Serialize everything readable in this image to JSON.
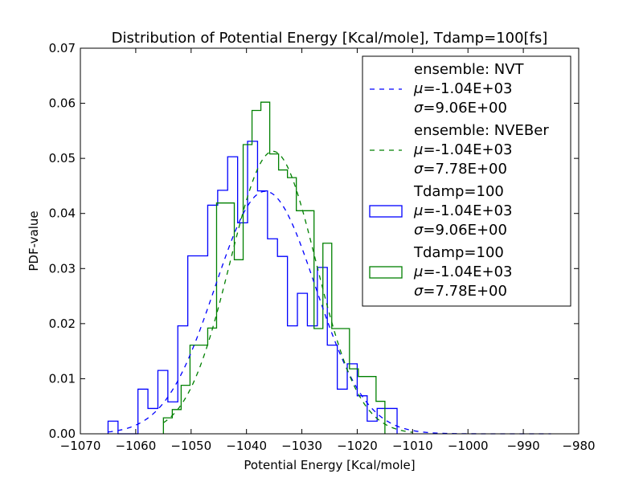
{
  "chart_data": {
    "type": "line",
    "title": "Distribution of Potential Energy [Kcal/mole], Tdamp=100[fs]",
    "xlabel": "Potential Energy [Kcal/mole]",
    "ylabel": "PDF-value",
    "xlim": [
      -1070,
      -980
    ],
    "ylim": [
      0.0,
      0.07
    ],
    "xticks": [
      -1070,
      -1060,
      -1050,
      -1040,
      -1030,
      -1020,
      -1010,
      -1000,
      -990,
      -980
    ],
    "xtick_labels": [
      "−1070",
      "−1060",
      "−1050",
      "−1040",
      "−1030",
      "−1020",
      "−1010",
      "−1000",
      "−990",
      "−980"
    ],
    "yticks": [
      0.0,
      0.01,
      0.02,
      0.03,
      0.04,
      0.05,
      0.06,
      0.07
    ],
    "ytick_labels": [
      "0.00",
      "0.01",
      "0.02",
      "0.03",
      "0.04",
      "0.05",
      "0.06",
      "0.07"
    ],
    "grid": false,
    "legend_position": "top-right",
    "series": [
      {
        "kind": "pdf-curve",
        "legend_lines": [
          "ensemble: NVT",
          "μ=-1.04E+03",
          "σ=9.06E+00"
        ],
        "color": "#0000ff",
        "style": "dashed",
        "mu": -1036.6,
        "sigma": 9.06,
        "x_range": [
          -1065,
          -985
        ]
      },
      {
        "kind": "pdf-curve",
        "legend_lines": [
          "ensemble: NVEBer",
          "μ=-1.04E+03",
          "σ=7.78E+00"
        ],
        "color": "#008000",
        "style": "dashed",
        "mu": -1035.2,
        "sigma": 7.78,
        "x_range": [
          -1055,
          -1010
        ]
      },
      {
        "kind": "histogram",
        "legend_lines": [
          "Tdamp=100",
          "μ=-1.04E+03",
          "σ=9.06E+00"
        ],
        "color": "#0000ff",
        "edges": [
          -1065.0,
          -1063.2,
          -1061.4,
          -1059.6,
          -1057.8,
          -1056.0,
          -1054.2,
          -1052.4,
          -1050.6,
          -1048.8,
          -1047.0,
          -1045.2,
          -1043.4,
          -1041.6,
          -1039.8,
          -1038.0,
          -1036.2,
          -1034.4,
          -1032.6,
          -1030.8,
          -1029.0,
          -1027.2,
          -1025.4,
          -1023.6,
          -1021.8,
          -1020.0,
          -1018.2,
          -1016.4,
          -1014.6,
          -1012.8
        ],
        "values": [
          0.0023,
          0.0,
          0.0,
          0.0081,
          0.0046,
          0.0115,
          0.0058,
          0.0196,
          0.0323,
          0.0323,
          0.0415,
          0.0442,
          0.0503,
          0.0383,
          0.0531,
          0.0441,
          0.0354,
          0.0322,
          0.0196,
          0.0255,
          0.0196,
          0.0302,
          0.0161,
          0.0081,
          0.0127,
          0.0069,
          0.0023,
          0.0046,
          0.0046
        ]
      },
      {
        "kind": "histogram",
        "legend_lines": [
          "Tdamp=100",
          "μ=-1.04E+03",
          "σ=7.78E+00"
        ],
        "color": "#008000",
        "edges": [
          -1055.0,
          -1053.4,
          -1051.8,
          -1050.2,
          -1048.6,
          -1047.0,
          -1045.4,
          -1043.8,
          -1042.2,
          -1040.6,
          -1039.0,
          -1037.4,
          -1035.8,
          -1034.2,
          -1032.6,
          -1031.0,
          -1029.4,
          -1027.8,
          -1026.2,
          -1024.6,
          -1023.0,
          -1021.4,
          -1019.8,
          -1018.2,
          -1016.6,
          -1015.0
        ],
        "values": [
          0.0029,
          0.0044,
          0.0088,
          0.0161,
          0.0161,
          0.0192,
          0.0419,
          0.0419,
          0.0316,
          0.0525,
          0.0587,
          0.0602,
          0.0508,
          0.0479,
          0.0465,
          0.0405,
          0.0405,
          0.0191,
          0.0346,
          0.0191,
          0.0191,
          0.0118,
          0.0104,
          0.0104,
          0.0059
        ]
      }
    ]
  }
}
